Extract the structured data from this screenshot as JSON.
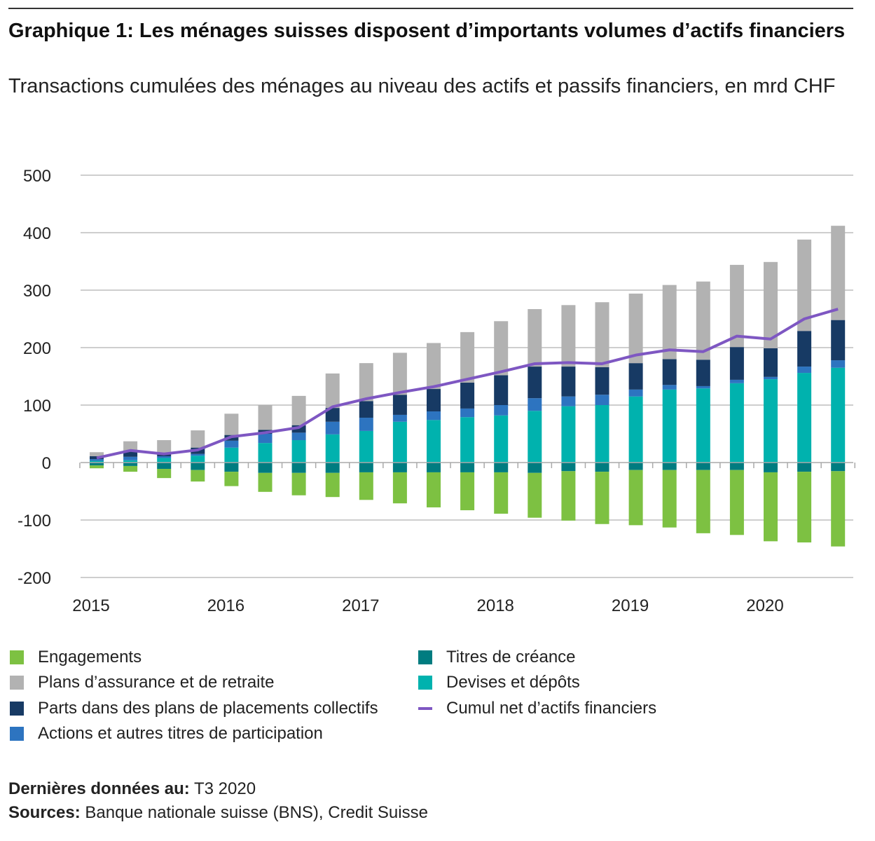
{
  "title": "Graphique 1: Les ménages suisses disposent d’importants volumes d’actifs financiers",
  "subtitle": "Transactions cumulées des ménages au niveau des actifs et passifs financiers, en mrd CHF",
  "footer": {
    "last_data_label": "Dernières données au:",
    "last_data_value": "T3 2020",
    "sources_label": "Sources:",
    "sources_value": "Banque nationale suisse (BNS), Credit Suisse"
  },
  "chart_data": {
    "type": "bar",
    "stacked": true,
    "title": "Graphique 1: Les ménages suisses disposent d’importants volumes d’actifs financiers",
    "subtitle": "Transactions cumulées des ménages au niveau des actifs et passifs financiers, en mrd CHF",
    "xlabel": "",
    "ylabel": "",
    "ylim": [
      -200,
      500
    ],
    "yticks": [
      "500",
      "400",
      "300",
      "200",
      "100",
      "0",
      "-100",
      "-200"
    ],
    "ytick_values": [
      500,
      400,
      300,
      200,
      100,
      0,
      -100,
      -200
    ],
    "xtick_labels": [
      "2015",
      "2016",
      "2017",
      "2018",
      "2019",
      "2020"
    ],
    "categories": [
      "2015 T1",
      "2015 T2",
      "2015 T3",
      "2015 T4",
      "2016 T1",
      "2016 T2",
      "2016 T3",
      "2016 T4",
      "2017 T1",
      "2017 T2",
      "2017 T3",
      "2017 T4",
      "2018 T1",
      "2018 T2",
      "2018 T3",
      "2018 T4",
      "2019 T1",
      "2019 T2",
      "2019 T3",
      "2019 T4",
      "2020 T1",
      "2020 T2",
      "2020 T3"
    ],
    "grid": true,
    "legend_position": "bottom",
    "series": [
      {
        "name": "Devises et dépôts",
        "color": "#00B2AE",
        "stack": "positive",
        "values": [
          3,
          4,
          8,
          12,
          26,
          34,
          39,
          49,
          55,
          71,
          74,
          79,
          82,
          90,
          98,
          100,
          115,
          127,
          129,
          138,
          145,
          156,
          165
        ]
      },
      {
        "name": "Actions et autres titres de participation",
        "color": "#2D74C0",
        "stack": "positive",
        "values": [
          3,
          6,
          3,
          3,
          12,
          16,
          13,
          22,
          23,
          12,
          15,
          15,
          18,
          22,
          17,
          18,
          12,
          8,
          4,
          6,
          4,
          11,
          13
        ]
      },
      {
        "name": "Parts dans des plans de placements collectifs",
        "color": "#173A64",
        "stack": "positive",
        "values": [
          5,
          11,
          6,
          11,
          10,
          7,
          13,
          24,
          29,
          35,
          39,
          45,
          52,
          55,
          52,
          48,
          46,
          45,
          46,
          57,
          50,
          62,
          70
        ]
      },
      {
        "name": "Plans d’assurance et de retraite",
        "color": "#B2B2B2",
        "stack": "positive",
        "values": [
          7,
          16,
          22,
          30,
          37,
          43,
          51,
          60,
          66,
          73,
          80,
          88,
          94,
          100,
          107,
          113,
          121,
          129,
          136,
          143,
          150,
          159,
          164
        ]
      },
      {
        "name": "Titres de créance",
        "color": "#007C80",
        "stack": "negative",
        "values": [
          -5,
          -6,
          -11,
          -13,
          -16,
          -18,
          -18,
          -18,
          -17,
          -17,
          -17,
          -17,
          -17,
          -18,
          -15,
          -16,
          -13,
          -13,
          -13,
          -13,
          -17,
          -16,
          -15
        ]
      },
      {
        "name": "Engagements",
        "color": "#7DC142",
        "stack": "negative",
        "values": [
          -5,
          -10,
          -16,
          -20,
          -25,
          -33,
          -39,
          -42,
          -48,
          -54,
          -61,
          -66,
          -72,
          -78,
          -86,
          -91,
          -96,
          -100,
          -110,
          -113,
          -120,
          -123,
          -131
        ]
      },
      {
        "name": "Cumul net d’actifs financiers",
        "color": "#7E57C2",
        "type": "line",
        "values": [
          8,
          21,
          15,
          22,
          45,
          52,
          61,
          97,
          111,
          122,
          132,
          145,
          158,
          172,
          174,
          172,
          187,
          196,
          193,
          220,
          215,
          250,
          267
        ]
      }
    ]
  },
  "legend": [
    {
      "label": "Engagements",
      "color": "#7DC142",
      "kind": "box"
    },
    {
      "label": "Plans d’assurance et de retraite",
      "color": "#B2B2B2",
      "kind": "box"
    },
    {
      "label": "Parts dans des plans de placements collectifs",
      "color": "#173A64",
      "kind": "box"
    },
    {
      "label": "Actions et autres titres de participation",
      "color": "#2D74C0",
      "kind": "box"
    },
    {
      "label": "Titres de créance",
      "color": "#007C80",
      "kind": "box"
    },
    {
      "label": "Devises et dépôts",
      "color": "#00B2AE",
      "kind": "box"
    },
    {
      "label": "Cumul net d’actifs financiers",
      "color": "#7E57C2",
      "kind": "line"
    }
  ]
}
